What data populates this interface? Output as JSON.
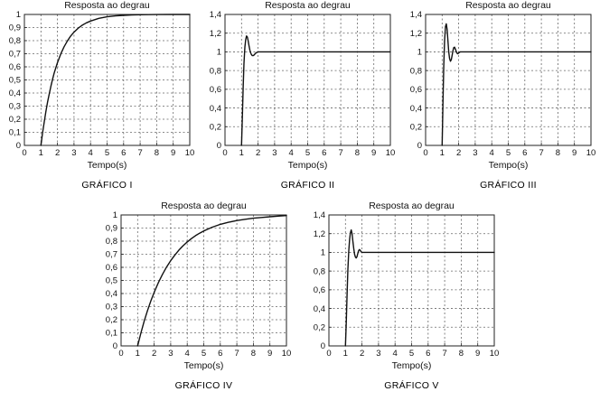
{
  "page": {
    "background": "#ffffff",
    "text_color": "#111111",
    "grid_color": "#666666",
    "curve_color": "#111111"
  },
  "chart_data": [
    {
      "id": "grafico-i",
      "type": "line",
      "title": "Resposta ao degrau",
      "xlabel": "Tempo(s)",
      "caption": "GRÁFICO I",
      "xlim": [
        0,
        10
      ],
      "ylim": [
        0,
        1
      ],
      "grid": true,
      "legend": "none",
      "xtick_values": [
        0,
        1,
        2,
        3,
        4,
        5,
        6,
        7,
        8,
        9,
        10
      ],
      "xtick_labels": [
        "0",
        "1",
        "2",
        "3",
        "4",
        "5",
        "6",
        "7",
        "8",
        "9",
        "10"
      ],
      "ytick_values": [
        0,
        0.1,
        0.2,
        0.3,
        0.4,
        0.5,
        0.6,
        0.7,
        0.8,
        0.9,
        1
      ],
      "ytick_labels": [
        "0",
        "0,1",
        "0,2",
        "0,3",
        "0,4",
        "0,5",
        "0,6",
        "0,7",
        "0,8",
        "0,9",
        "1"
      ],
      "points": [
        [
          1,
          0
        ],
        [
          1.1,
          0.095
        ],
        [
          1.2,
          0.181
        ],
        [
          1.3,
          0.259
        ],
        [
          1.4,
          0.33
        ],
        [
          1.5,
          0.393
        ],
        [
          1.6,
          0.451
        ],
        [
          1.7,
          0.503
        ],
        [
          1.8,
          0.551
        ],
        [
          1.9,
          0.593
        ],
        [
          2,
          0.632
        ],
        [
          2.2,
          0.699
        ],
        [
          2.4,
          0.753
        ],
        [
          2.6,
          0.798
        ],
        [
          2.8,
          0.835
        ],
        [
          3,
          0.865
        ],
        [
          3.25,
          0.895
        ],
        [
          3.5,
          0.918
        ],
        [
          3.75,
          0.936
        ],
        [
          4,
          0.95
        ],
        [
          4.5,
          0.97
        ],
        [
          5,
          0.982
        ],
        [
          5.5,
          0.989
        ],
        [
          6,
          0.993
        ],
        [
          6.5,
          0.996
        ],
        [
          7,
          0.998
        ],
        [
          8,
          0.999
        ],
        [
          9,
          1
        ],
        [
          10,
          1
        ]
      ]
    },
    {
      "id": "grafico-ii",
      "type": "line",
      "title": "Resposta ao degrau",
      "xlabel": "Tempo(s)",
      "caption": "GRÁFICO II",
      "xlim": [
        0,
        10
      ],
      "ylim": [
        0,
        1.4
      ],
      "grid": true,
      "legend": "none",
      "xtick_values": [
        0,
        1,
        2,
        3,
        4,
        5,
        6,
        7,
        8,
        9,
        10
      ],
      "xtick_labels": [
        "0",
        "1",
        "2",
        "3",
        "4",
        "5",
        "6",
        "7",
        "8",
        "9",
        "10"
      ],
      "ytick_values": [
        0,
        0.2,
        0.4,
        0.6,
        0.8,
        1,
        1.2,
        1.4
      ],
      "ytick_labels": [
        "0",
        "0,2",
        "0,4",
        "0,6",
        "0,8",
        "1",
        "1,2",
        "1,4"
      ],
      "points": [
        [
          1,
          0
        ],
        [
          1.05,
          0.3
        ],
        [
          1.1,
          0.62
        ],
        [
          1.15,
          0.88
        ],
        [
          1.2,
          1.05
        ],
        [
          1.25,
          1.13
        ],
        [
          1.3,
          1.17
        ],
        [
          1.35,
          1.16
        ],
        [
          1.4,
          1.12
        ],
        [
          1.45,
          1.07
        ],
        [
          1.5,
          1.02
        ],
        [
          1.55,
          0.99
        ],
        [
          1.6,
          0.97
        ],
        [
          1.65,
          0.96
        ],
        [
          1.7,
          0.96
        ],
        [
          1.75,
          0.965
        ],
        [
          1.8,
          0.975
        ],
        [
          1.85,
          0.985
        ],
        [
          1.9,
          0.992
        ],
        [
          2,
          1
        ],
        [
          2.5,
          1
        ],
        [
          10,
          1
        ]
      ]
    },
    {
      "id": "grafico-iii",
      "type": "line",
      "title": "Resposta ao degrau",
      "xlabel": "Tempo(s)",
      "caption": "GRÁFICO III",
      "xlim": [
        0,
        10
      ],
      "ylim": [
        0,
        1.4
      ],
      "grid": true,
      "legend": "none",
      "xtick_values": [
        0,
        1,
        2,
        3,
        4,
        5,
        6,
        7,
        8,
        9,
        10
      ],
      "xtick_labels": [
        "0",
        "1",
        "2",
        "3",
        "4",
        "5",
        "6",
        "7",
        "8",
        "9",
        "10"
      ],
      "ytick_values": [
        0,
        0.2,
        0.4,
        0.6,
        0.8,
        1,
        1.2,
        1.4
      ],
      "ytick_labels": [
        "0",
        "0,2",
        "0,4",
        "0,6",
        "0,8",
        "1",
        "1,2",
        "1,4"
      ],
      "points": [
        [
          1,
          0
        ],
        [
          1.05,
          0.45
        ],
        [
          1.1,
          0.85
        ],
        [
          1.15,
          1.12
        ],
        [
          1.2,
          1.27
        ],
        [
          1.25,
          1.3
        ],
        [
          1.3,
          1.24
        ],
        [
          1.35,
          1.12
        ],
        [
          1.4,
          1
        ],
        [
          1.45,
          0.93
        ],
        [
          1.5,
          0.9
        ],
        [
          1.55,
          0.915
        ],
        [
          1.6,
          0.96
        ],
        [
          1.65,
          1.01
        ],
        [
          1.7,
          1.045
        ],
        [
          1.75,
          1.05
        ],
        [
          1.8,
          1.03
        ],
        [
          1.85,
          1.005
        ],
        [
          1.9,
          0.985
        ],
        [
          1.95,
          0.98
        ],
        [
          2,
          0.99
        ],
        [
          2.1,
          1
        ],
        [
          2.5,
          1
        ],
        [
          10,
          1
        ]
      ]
    },
    {
      "id": "grafico-iv",
      "type": "line",
      "title": "Resposta ao degrau",
      "xlabel": "Tempo(s)",
      "caption": "GRÁFICO IV",
      "xlim": [
        0,
        10
      ],
      "ylim": [
        0,
        1
      ],
      "grid": true,
      "legend": "none",
      "xtick_values": [
        0,
        1,
        2,
        3,
        4,
        5,
        6,
        7,
        8,
        9,
        10
      ],
      "xtick_labels": [
        "0",
        "1",
        "2",
        "3",
        "4",
        "5",
        "6",
        "7",
        "8",
        "9",
        "10"
      ],
      "ytick_values": [
        0,
        0.1,
        0.2,
        0.3,
        0.4,
        0.5,
        0.6,
        0.7,
        0.8,
        0.9,
        1
      ],
      "ytick_labels": [
        "0",
        "0,1",
        "0,2",
        "0,3",
        "0,4",
        "0,5",
        "0,6",
        "0,7",
        "0,8",
        "0,9",
        "1"
      ],
      "points": [
        [
          1,
          0
        ],
        [
          1.2,
          0.1
        ],
        [
          1.4,
          0.19
        ],
        [
          1.6,
          0.271
        ],
        [
          1.8,
          0.343
        ],
        [
          2,
          0.409
        ],
        [
          2.25,
          0.482
        ],
        [
          2.5,
          0.546
        ],
        [
          2.75,
          0.602
        ],
        [
          3,
          0.651
        ],
        [
          3.25,
          0.694
        ],
        [
          3.5,
          0.732
        ],
        [
          3.75,
          0.765
        ],
        [
          4,
          0.794
        ],
        [
          4.25,
          0.819
        ],
        [
          4.5,
          0.842
        ],
        [
          4.75,
          0.861
        ],
        [
          5,
          0.878
        ],
        [
          5.5,
          0.906
        ],
        [
          6,
          0.928
        ],
        [
          6.5,
          0.944
        ],
        [
          7,
          0.957
        ],
        [
          7.5,
          0.967
        ],
        [
          8,
          0.975
        ],
        [
          8.5,
          0.981
        ],
        [
          9,
          0.986
        ],
        [
          9.5,
          0.991
        ],
        [
          10,
          0.995
        ]
      ]
    },
    {
      "id": "grafico-v",
      "type": "line",
      "title": "Resposta ao degrau",
      "xlabel": "Tempo(s)",
      "caption": "GRÁFICO V",
      "xlim": [
        0,
        10
      ],
      "ylim": [
        0,
        1.4
      ],
      "grid": true,
      "legend": "none",
      "xtick_values": [
        0,
        1,
        2,
        3,
        4,
        5,
        6,
        7,
        8,
        9,
        10
      ],
      "xtick_labels": [
        "0",
        "1",
        "2",
        "3",
        "4",
        "5",
        "6",
        "7",
        "8",
        "9",
        "10"
      ],
      "ytick_values": [
        0,
        0.2,
        0.4,
        0.6,
        0.8,
        1,
        1.2,
        1.4
      ],
      "ytick_labels": [
        "0",
        "0,2",
        "0,4",
        "0,6",
        "0,8",
        "1",
        "1,2",
        "1,4"
      ],
      "points": [
        [
          1,
          0
        ],
        [
          1.05,
          0.25
        ],
        [
          1.1,
          0.55
        ],
        [
          1.15,
          0.82
        ],
        [
          1.2,
          1.02
        ],
        [
          1.25,
          1.14
        ],
        [
          1.3,
          1.21
        ],
        [
          1.35,
          1.24
        ],
        [
          1.4,
          1.2
        ],
        [
          1.45,
          1.12
        ],
        [
          1.5,
          1.04
        ],
        [
          1.55,
          0.98
        ],
        [
          1.6,
          0.95
        ],
        [
          1.65,
          0.94
        ],
        [
          1.7,
          0.955
        ],
        [
          1.75,
          0.99
        ],
        [
          1.8,
          1.02
        ],
        [
          1.85,
          1.03
        ],
        [
          1.9,
          1.02
        ],
        [
          1.95,
          1.005
        ],
        [
          2,
          1
        ],
        [
          2.5,
          1
        ],
        [
          10,
          1
        ]
      ]
    }
  ]
}
